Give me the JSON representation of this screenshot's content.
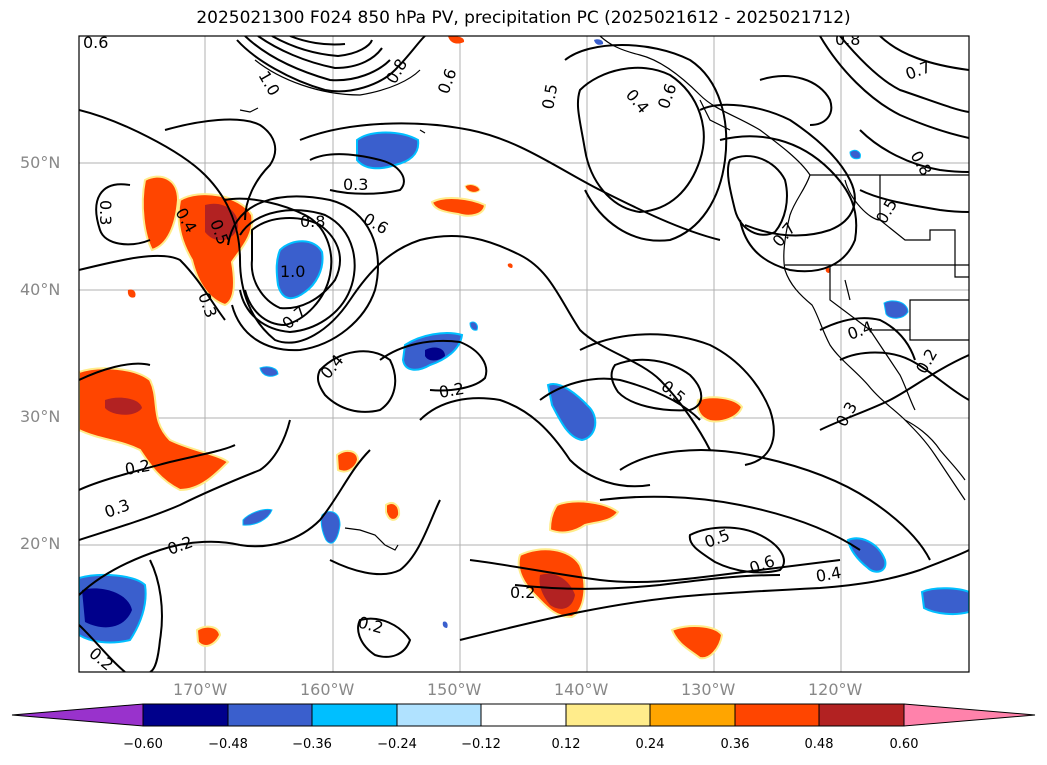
{
  "title": "2025021300 F024 850 hPa PV, precipitation PC (2025021612 - 2025021712)",
  "lat_labels": [
    "50°N",
    "40°N",
    "30°N",
    "20°N"
  ],
  "lon_labels": [
    "170°W",
    "160°W",
    "150°W",
    "140°W",
    "130°W",
    "120°W"
  ],
  "colorbar": {
    "ticks": [
      "−0.60",
      "−0.48",
      "−0.36",
      "−0.24",
      "−0.12",
      "0.12",
      "0.24",
      "0.36",
      "0.48",
      "0.60"
    ],
    "colors": [
      "#9932CC",
      "#00008B",
      "#3A5FCD",
      "#00BFFF",
      "#B0E2FF",
      "#FFFFFF",
      "#FFEC8B",
      "#FFA500",
      "#FF4500",
      "#B22222",
      "#FF82AB"
    ]
  },
  "contour_labels": [
    {
      "text": "0.6"
    },
    {
      "text": "1.0"
    },
    {
      "text": "0.8"
    },
    {
      "text": "0.6"
    },
    {
      "text": "0.5"
    },
    {
      "text": "0.4"
    },
    {
      "text": "0.6"
    },
    {
      "text": "0.8"
    },
    {
      "text": "0.7"
    },
    {
      "text": "0.8"
    },
    {
      "text": "0.3"
    },
    {
      "text": "0.3"
    },
    {
      "text": "0.4"
    },
    {
      "text": "0.5"
    },
    {
      "text": "0.3"
    },
    {
      "text": "0.8"
    },
    {
      "text": "0.6"
    },
    {
      "text": "1.0"
    },
    {
      "text": "0.7"
    },
    {
      "text": "0.4"
    },
    {
      "text": "0.2"
    },
    {
      "text": "0.5"
    },
    {
      "text": "0.7"
    },
    {
      "text": "0.5"
    },
    {
      "text": "0.4"
    },
    {
      "text": "0.2"
    },
    {
      "text": "0.3"
    },
    {
      "text": "0.2"
    },
    {
      "text": "0.3"
    },
    {
      "text": "0.2"
    },
    {
      "text": "0.5"
    },
    {
      "text": "0.6"
    },
    {
      "text": "0.4"
    },
    {
      "text": "0.2"
    },
    {
      "text": "0.2"
    },
    {
      "text": "0.2"
    }
  ]
}
